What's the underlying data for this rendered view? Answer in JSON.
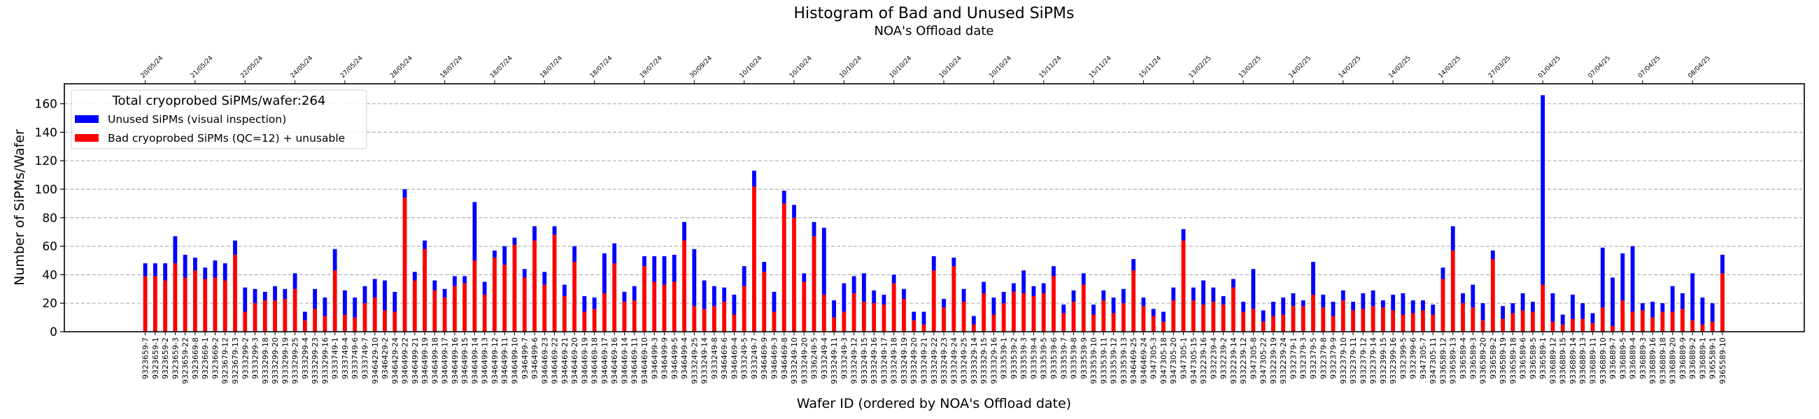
{
  "chart_data": {
    "type": "bar",
    "stacked": true,
    "title": "Histogram of Bad and Unused SiPMs",
    "top_axis_label": "NOA's Offload date",
    "xlabel": "Wafer ID (ordered by NOA's Offload date)",
    "ylabel": "Number of SiPMs/Wafer",
    "ylim": [
      0,
      174
    ],
    "xlim": [
      -8.1,
      166.2
    ],
    "yticks": [
      0,
      20,
      40,
      60,
      80,
      100,
      120,
      140,
      160
    ],
    "grid": "y, dashed",
    "legend": {
      "placement": "upper-left",
      "title": "Total cryoprobed SiPMs/wafer:264",
      "entries": [
        "Unused SiPMs (visual inspection)",
        "Bad cryoprobed SiPMs (QC=12) + unusable"
      ]
    },
    "colors": {
      "unused": "#0000ff",
      "bad": "#ff0000"
    },
    "top_ticks_every": 5,
    "top_tick_labels": [
      "20/05/24",
      "21/05/24",
      "22/05/24",
      "24/05/24",
      "27/05/24",
      "28/05/24",
      "18/07/24",
      "18/07/24",
      "18/07/24",
      "18/07/24",
      "19/07/24",
      "30/09/24",
      "10/10/24",
      "10/10/24",
      "10/10/24",
      "10/10/24",
      "10/10/24",
      "10/10/24",
      "15/11/24",
      "15/11/24",
      "15/11/24",
      "13/02/25",
      "13/02/25",
      "14/02/25",
      "14/02/25",
      "14/02/25",
      "14/02/25",
      "27/03/25",
      "01/04/25",
      "07/04/25",
      "07/04/25",
      "08/04/25"
    ],
    "categories": [
      "9323659-7",
      "9323659-1",
      "9323659-2",
      "9323659-3",
      "9323659-22",
      "9323669-8",
      "9323669-1",
      "9323669-2",
      "9323679-12",
      "9323679-13",
      "9333299-2",
      "9333299-3",
      "9333299-18",
      "9333299-20",
      "9333299-19",
      "9333299-25",
      "9333299-4",
      "9333299-23",
      "9333299-16",
      "9333749-1",
      "9333749-4",
      "9333749-6",
      "9333749-7",
      "9346429-10",
      "9346429-2",
      "9346429-24",
      "9346499-22",
      "9346499-21",
      "9346499-19",
      "9346499-18",
      "9346499-17",
      "9346499-16",
      "9346499-15",
      "9346499-14",
      "9346499-13",
      "9346499-12",
      "9346499-11",
      "9346499-10",
      "9346499-7",
      "9346499-6",
      "9346469-23",
      "9346469-22",
      "9346469-21",
      "9346469-20",
      "9346469-19",
      "9346469-18",
      "9346469-17",
      "9346469-16",
      "9346469-14",
      "9346469-11",
      "9346469-10",
      "9346499-3",
      "9346499-9",
      "9346499-5",
      "9346499-4",
      "9333249-25",
      "9333249-14",
      "9333249-8",
      "9346469-6",
      "9346469-4",
      "9333249-5",
      "9333249-7",
      "9346469-9",
      "9346469-3",
      "9346469-8",
      "9333249-10",
      "9333249-20",
      "9336249-5",
      "9333249-4",
      "9333249-11",
      "9333249-3",
      "9333249-12",
      "9333249-15",
      "9333249-16",
      "9333249-17",
      "9333249-18",
      "9333249-19",
      "9333249-20",
      "9333249-21",
      "9333249-22",
      "9333249-23",
      "9333249-24",
      "9333249-25",
      "9333329-14",
      "9333329-15",
      "9333329-16",
      "9333539-1",
      "9333539-2",
      "9333539-3",
      "9333539-4",
      "9333539-5",
      "9333539-6",
      "9333539-7",
      "9333539-8",
      "9333539-9",
      "9333539-10",
      "9333539-11",
      "9333539-12",
      "9333539-13",
      "9346469-25",
      "9346469-24",
      "9347305-3",
      "9347305-18",
      "9347305-20",
      "9347305-1",
      "9347305-15",
      "9332239-16",
      "9332239-4",
      "9332239-2",
      "9332239-14",
      "9332239-12",
      "9347305-8",
      "9347305-22",
      "9332239-19",
      "9332239-24",
      "9332379-1",
      "9332379-3",
      "9332379-5",
      "9332379-8",
      "9332379-9",
      "9332379-10",
      "9332379-11",
      "9332379-12",
      "9332379-14",
      "9332399-15",
      "9332399-16",
      "9332399-5",
      "9332399-6",
      "9347305-7",
      "9347305-11",
      "9336589-12",
      "9336589-13",
      "9336589-4",
      "9336589-3",
      "9336589-20",
      "9336589-2",
      "9336589-19",
      "9336589-18",
      "9336589-6",
      "9336589-5",
      "9336589-1",
      "9336889-12",
      "9336889-15",
      "9336889-14",
      "9336889-13",
      "9336889-11",
      "9336889-10",
      "9336889-7",
      "9336889-5",
      "9336889-4",
      "9336889-3",
      "9336889-16",
      "9336889-18",
      "9336889-20",
      "9336889-9",
      "9336889-2",
      "9336889-1",
      "9365589-1",
      "9365589-10"
    ],
    "series": [
      {
        "name": "Bad cryoprobed SiPMs (QC=12) + unusable",
        "values": [
          39,
          39,
          36,
          48,
          38,
          43,
          37,
          38,
          36,
          54,
          14,
          20,
          22,
          22,
          23,
          30,
          8,
          16,
          11,
          43,
          12,
          10,
          20,
          24,
          15,
          14,
          94,
          36,
          58,
          29,
          24,
          32,
          34,
          50,
          26,
          52,
          47,
          61,
          38,
          64,
          33,
          68,
          25,
          49,
          14,
          16,
          27,
          48,
          21,
          22,
          46,
          35,
          33,
          35,
          64,
          18,
          16,
          18,
          21,
          12,
          32,
          102,
          42,
          14,
          90,
          80,
          35,
          67,
          26,
          10,
          14,
          27,
          21,
          20,
          19,
          34,
          23,
          8,
          5,
          43,
          17,
          46,
          21,
          5,
          27,
          12,
          20,
          28,
          27,
          25,
          27,
          39,
          13,
          21,
          33,
          12,
          22,
          13,
          20,
          43,
          18,
          11,
          7,
          22,
          64,
          22,
          19,
          21,
          19,
          31,
          14,
          16,
          7,
          11,
          12,
          18,
          18,
          26,
          17,
          11,
          22,
          15,
          16,
          18,
          17,
          15,
          12,
          13,
          15,
          12,
          37,
          57,
          20,
          17,
          8,
          51,
          9,
          13,
          15,
          14,
          33,
          7,
          5,
          9,
          9,
          6,
          17,
          4,
          22,
          14,
          15,
          10,
          14,
          14,
          16,
          8,
          5,
          7,
          41
        ]
      },
      {
        "name": "Unused SiPMs (visual inspection)",
        "values": [
          9,
          9,
          12,
          19,
          16,
          9,
          8,
          12,
          12,
          10,
          17,
          10,
          6,
          10,
          7,
          11,
          6,
          14,
          13,
          15,
          17,
          14,
          12,
          13,
          21,
          14,
          6,
          6,
          6,
          7,
          6,
          7,
          5,
          41,
          9,
          5,
          13,
          5,
          6,
          10,
          9,
          6,
          8,
          11,
          11,
          8,
          28,
          14,
          7,
          10,
          7,
          18,
          20,
          19,
          13,
          40,
          20,
          14,
          10,
          14,
          14,
          11,
          7,
          14,
          9,
          9,
          6,
          10,
          47,
          12,
          20,
          12,
          20,
          9,
          7,
          6,
          7,
          6,
          9,
          10,
          6,
          6,
          9,
          6,
          8,
          12,
          8,
          6,
          16,
          7,
          7,
          7,
          6,
          8,
          8,
          7,
          7,
          11,
          10,
          8,
          6,
          5,
          7,
          9,
          8,
          9,
          17,
          10,
          6,
          6,
          7,
          28,
          8,
          10,
          12,
          9,
          4,
          23,
          9,
          10,
          7,
          6,
          11,
          11,
          5,
          11,
          15,
          9,
          7,
          7,
          8,
          17,
          7,
          16,
          12,
          6,
          9,
          7,
          12,
          7,
          133,
          20,
          7,
          17,
          11,
          7,
          42,
          34,
          33,
          46,
          5,
          11,
          6,
          18,
          11,
          33,
          19,
          13,
          13
        ]
      }
    ]
  }
}
